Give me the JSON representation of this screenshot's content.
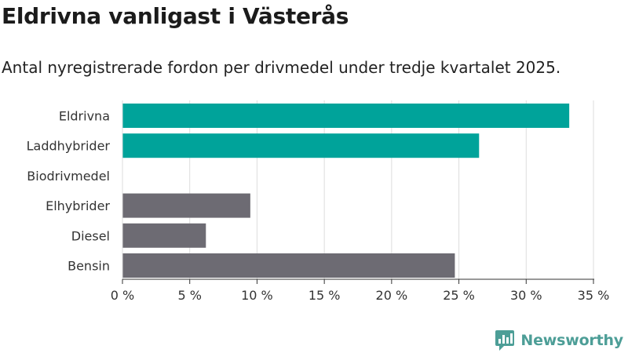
{
  "chart_data": {
    "type": "bar",
    "orientation": "horizontal",
    "title": "Eldrivna vanligast i Västerås",
    "subtitle": "Antal nyregistrerade fordon per drivmedel under tredje kvartalet 2025.",
    "categories": [
      "Eldrivna",
      "Laddhybrider",
      "Biodrivmedel",
      "Elhybrider",
      "Diesel",
      "Bensin"
    ],
    "values": [
      33.2,
      26.5,
      0,
      9.5,
      6.2,
      24.7
    ],
    "bar_colors": [
      "#00a39a",
      "#00a39a",
      "#00a39a",
      "#6d6b73",
      "#6d6b73",
      "#6d6b73"
    ],
    "xlim": [
      0,
      35
    ],
    "xticks": [
      0,
      5,
      10,
      15,
      20,
      25,
      30,
      35
    ],
    "xtick_labels": [
      "0 %",
      "5 %",
      "10 %",
      "15 %",
      "20 %",
      "25 %",
      "30 %",
      "35 %"
    ],
    "xlabel": "",
    "ylabel": "",
    "grid": "vertical",
    "gridline_color": "#dddddd",
    "axis_color": "#333333"
  },
  "brand": {
    "name": "Newsworthy",
    "color": "#4d9e97",
    "icon": "bar-chart-speech-bubble-icon"
  }
}
